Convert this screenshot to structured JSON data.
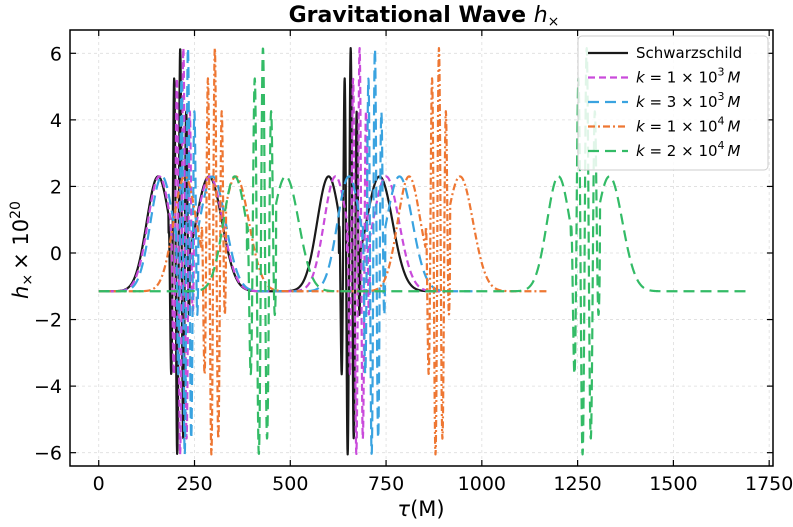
{
  "chart_data": {
    "type": "line",
    "title_main": "Gravitational Wave",
    "title_symbol": "h",
    "title_sub": "×",
    "xlabel_symbol": "τ",
    "xlabel_unit": "(M)",
    "ylabel_symbol": "h",
    "ylabel_sub": "×",
    "ylabel_factor": "× 10",
    "ylabel_exp": "20",
    "xlim": [
      -75,
      1760
    ],
    "ylim": [
      -6.4,
      6.7
    ],
    "xticks": [
      0,
      250,
      500,
      750,
      1000,
      1250,
      1500,
      1750
    ],
    "xtick_labels": [
      "0",
      "250",
      "500",
      "750",
      "1000",
      "1250",
      "1500",
      "1750"
    ],
    "yticks": [
      -6,
      -4,
      -2,
      0,
      2,
      4,
      6
    ],
    "ytick_labels": [
      "−6",
      "−4",
      "−2",
      "0",
      "2",
      "4",
      "6"
    ],
    "grid": true,
    "legend_position": "top-right",
    "series": [
      {
        "name": "Schwarzschild",
        "label_lhs": "",
        "label_coef": "",
        "label_exp": "",
        "label_unit": "",
        "color": "#1a1a1a",
        "dash": "solid",
        "start": 0,
        "period": 445,
        "n": 2,
        "burst_center": 210,
        "burst_half_width": 28,
        "peak_left": 155,
        "peak_right": 288
      },
      {
        "name": "k = 1 × 10^3 M",
        "label_lhs": "k",
        "label_coef": " = 1 × 10",
        "label_exp": "3",
        "label_unit": "M",
        "color": "#c94bdb",
        "dash": "dashed",
        "start": 0,
        "period": 460,
        "n": 2,
        "burst_center": 218,
        "burst_half_width": 30,
        "peak_left": 158,
        "peak_right": 290
      },
      {
        "name": "k = 3 × 10^3 M",
        "label_lhs": "k",
        "label_coef": " = 3 × 10",
        "label_exp": "3",
        "label_unit": "M",
        "color": "#3aa3e0",
        "dash": "dashed-long",
        "start": 0,
        "period": 488,
        "n": 2,
        "burst_center": 230,
        "burst_half_width": 30,
        "peak_left": 165,
        "peak_right": 297
      },
      {
        "name": "k = 1 × 10^4 M",
        "label_lhs": "k",
        "label_coef": " = 1 × 10",
        "label_exp": "4",
        "label_unit": "M",
        "color": "#ee7733",
        "dash": "dashdot",
        "start": 0,
        "period": 585,
        "n": 2,
        "burst_center": 300,
        "burst_half_width": 32,
        "peak_left": 225,
        "peak_right": 358
      },
      {
        "name": "k = 2 × 10^4 M",
        "label_lhs": "k",
        "label_coef": " = 2 × 10",
        "label_exp": "4",
        "label_unit": "M",
        "color": "#33bb66",
        "dash": "dashed-long",
        "start": 0,
        "period": 845,
        "n": 2,
        "burst_center": 425,
        "burst_half_width": 38,
        "peak_left": 355,
        "peak_right": 488
      }
    ]
  }
}
